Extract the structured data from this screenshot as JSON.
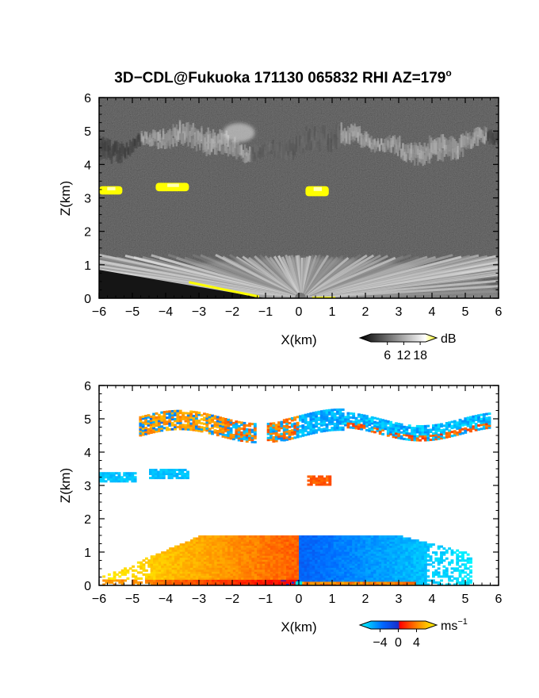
{
  "title": "3D−CDL@Fukuoka 171130 065832 RHI AZ=179",
  "title_degree": "o",
  "chart_data": [
    {
      "type": "heatmap",
      "panel": "top",
      "variable": "reflectivity",
      "xlabel": "X(km)",
      "ylabel": "Z(km)",
      "xlim": [
        -6,
        6
      ],
      "ylim": [
        0,
        6
      ],
      "xticks": [
        "−6",
        "−5",
        "−4",
        "−3",
        "−2",
        "−1",
        "0",
        "1",
        "2",
        "3",
        "4",
        "5",
        "6"
      ],
      "yticks": [
        "0",
        "1",
        "2",
        "3",
        "4",
        "5",
        "6"
      ],
      "colorbar": {
        "unit": "dB",
        "ticks": [
          "6",
          "12",
          "18"
        ],
        "tick_values": [
          6,
          12,
          18
        ],
        "range": [
          0,
          20
        ],
        "colors": [
          "#000000",
          "#ffffff",
          "#ffff00"
        ]
      },
      "features": [
        {
          "kind": "cloud-layer",
          "x": [
            -6,
            6
          ],
          "z": [
            4.3,
            5.2
          ],
          "level": 0.7
        },
        {
          "kind": "cloud-patch",
          "x": [
            -6,
            -5.3
          ],
          "z": [
            3.1,
            3.35
          ],
          "level": 1.0
        },
        {
          "kind": "cloud-patch",
          "x": [
            -4.3,
            -3.3
          ],
          "z": [
            3.2,
            3.45
          ],
          "level": 1.0
        },
        {
          "kind": "cloud-patch",
          "x": [
            0.2,
            0.9
          ],
          "z": [
            3.05,
            3.35
          ],
          "level": 1.0
        },
        {
          "kind": "boundary-layer",
          "x": [
            -6,
            6
          ],
          "z": [
            0,
            1.2
          ],
          "level": 0.85
        }
      ]
    },
    {
      "type": "heatmap",
      "panel": "bottom",
      "variable": "doppler-velocity",
      "xlabel": "X(km)",
      "ylabel": "Z(km)",
      "xlim": [
        -6,
        6
      ],
      "ylim": [
        0,
        6
      ],
      "xticks": [
        "−6",
        "−5",
        "−4",
        "−3",
        "−2",
        "−1",
        "0",
        "1",
        "2",
        "3",
        "4",
        "5",
        "6"
      ],
      "yticks": [
        "0",
        "1",
        "2",
        "3",
        "4",
        "5",
        "6"
      ],
      "colorbar": {
        "unit": "ms",
        "unit_exponent": "−1",
        "ticks": [
          "−4",
          "0",
          "4"
        ],
        "tick_values": [
          -4,
          0,
          4
        ],
        "range": [
          -6,
          6
        ],
        "colors": [
          "#00ffff",
          "#0066ff",
          "#1a2ecc",
          "#ff0000",
          "#ff8800",
          "#ffff00"
        ]
      },
      "features": [
        {
          "kind": "upper-cloud-mixed",
          "x": [
            -4.8,
            5.7
          ],
          "z": [
            4.3,
            5.3
          ],
          "velocity": [
            -5,
            3
          ]
        },
        {
          "kind": "patch",
          "x": [
            -6,
            -4.9
          ],
          "z": [
            3.1,
            3.35
          ],
          "velocity": -4.5
        },
        {
          "kind": "patch",
          "x": [
            -4.5,
            -3.3
          ],
          "z": [
            3.2,
            3.45
          ],
          "velocity": -4.5
        },
        {
          "kind": "patch",
          "x": [
            0.25,
            0.95
          ],
          "z": [
            3.0,
            3.3
          ],
          "velocity": 2
        },
        {
          "kind": "boundary-layer-negative-x",
          "x": [
            -5.9,
            0
          ],
          "z": [
            0,
            1.5
          ],
          "velocity": [
            5,
            2
          ]
        },
        {
          "kind": "boundary-layer-positive-x",
          "x": [
            0,
            5.2
          ],
          "z": [
            0,
            1.5
          ],
          "velocity": [
            -2,
            -5
          ]
        }
      ]
    }
  ]
}
